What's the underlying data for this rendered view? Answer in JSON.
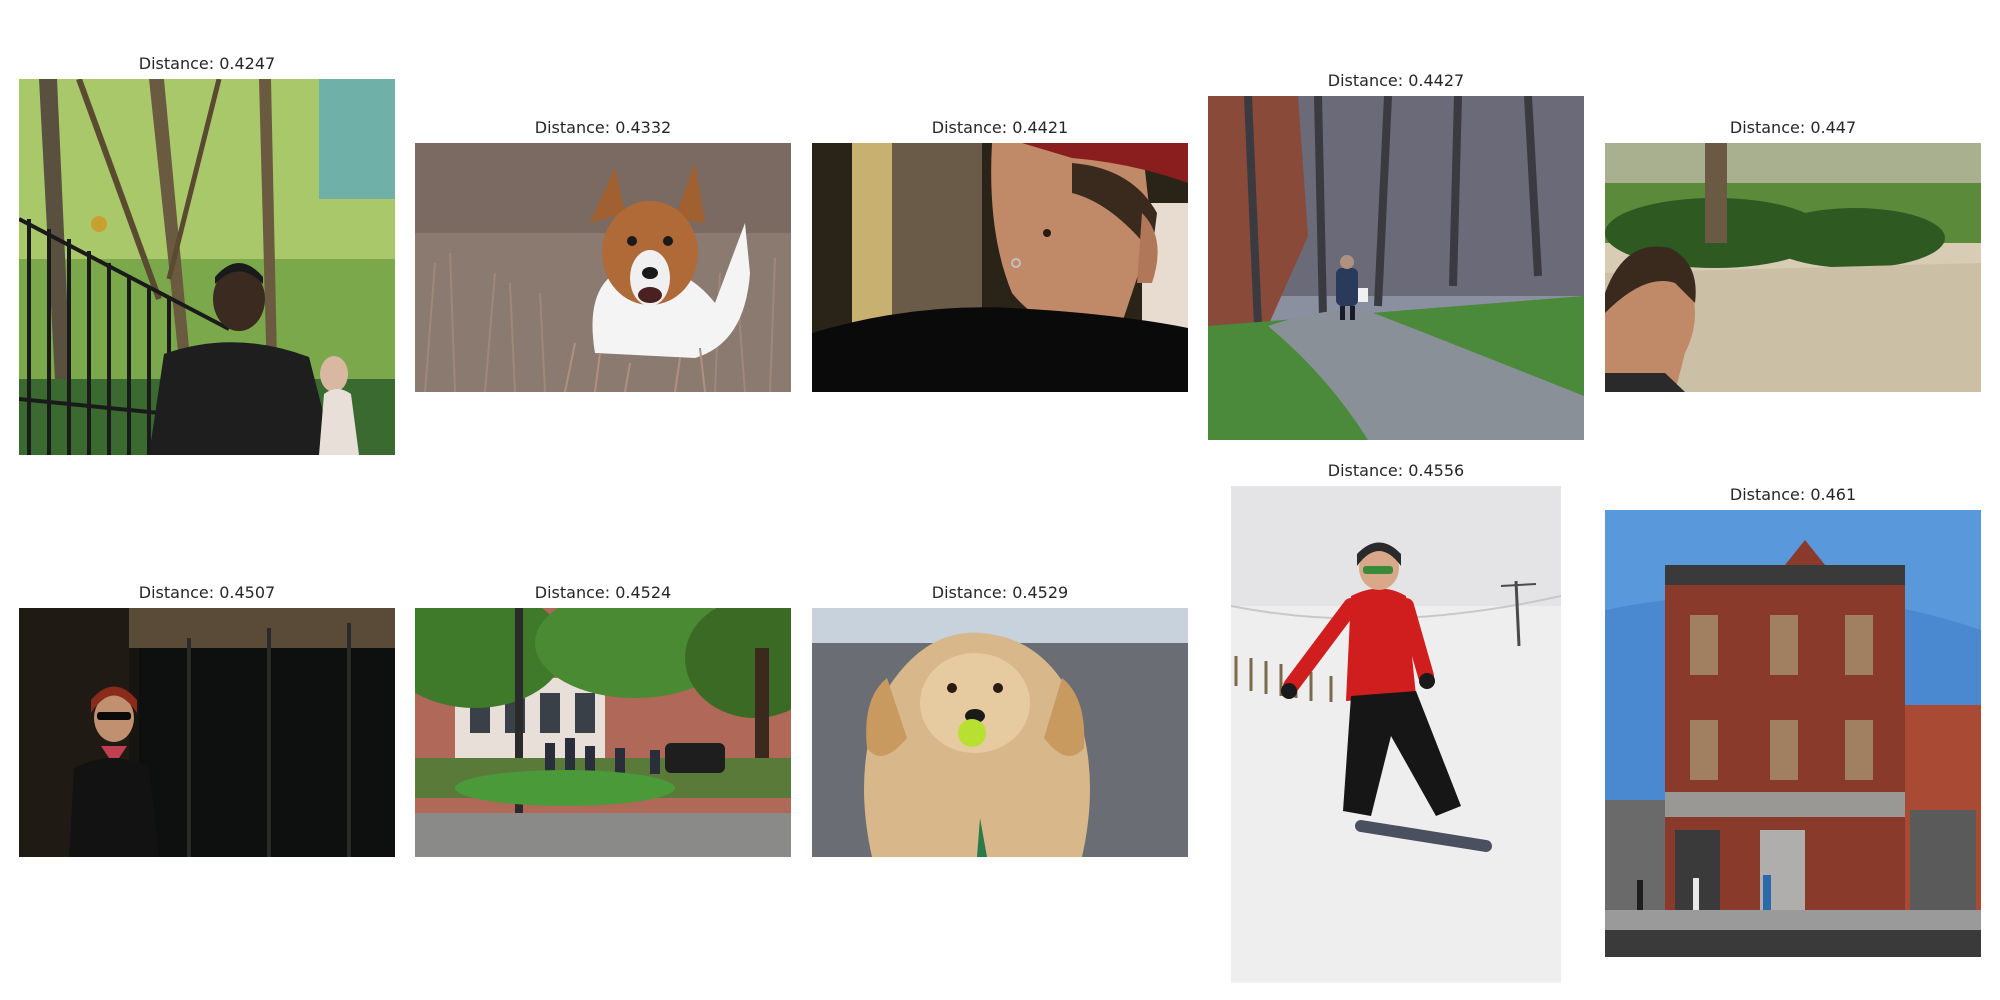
{
  "results": [
    {
      "caption": "Distance: 0.4247",
      "scene": "man-by-iron-fence-in-park"
    },
    {
      "caption": "Distance: 0.4332",
      "scene": "jack-russell-running-in-grass"
    },
    {
      "caption": "Distance: 0.4421",
      "scene": "young-man-profile-nose-ring"
    },
    {
      "caption": "Distance: 0.4427",
      "scene": "person-walking-on-wooded-path"
    },
    {
      "caption": "Distance: 0.447",
      "scene": "man-profile-in-park"
    },
    {
      "caption": "Distance: 0.4507",
      "scene": "woman-in-sunglasses-dark-doorway"
    },
    {
      "caption": "Distance: 0.4524",
      "scene": "people-in-city-park"
    },
    {
      "caption": "Distance: 0.4529",
      "scene": "golden-retriever-with-tennis-ball"
    },
    {
      "caption": "Distance: 0.4556",
      "scene": "snowboarder-in-red-jacket"
    },
    {
      "caption": "Distance: 0.461",
      "scene": "abandoned-brick-building"
    }
  ]
}
